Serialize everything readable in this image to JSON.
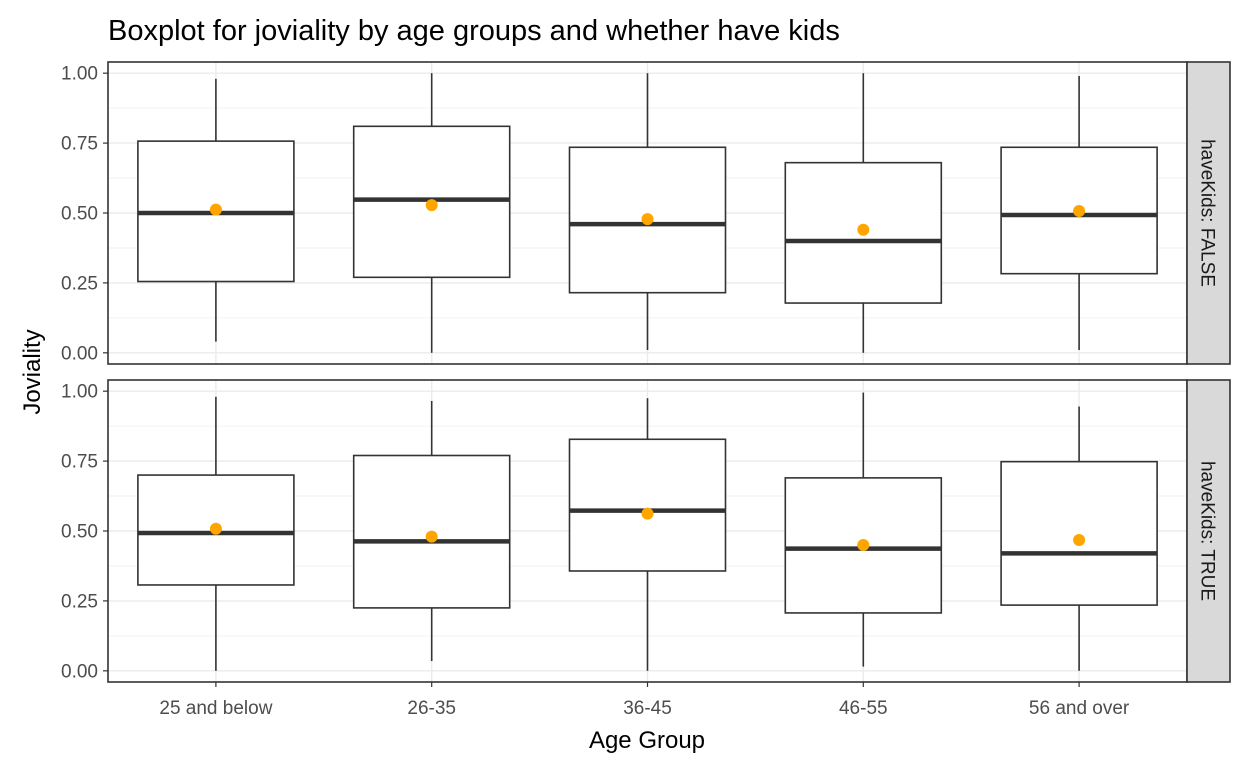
{
  "chart_data": {
    "type": "boxplot",
    "title": "Boxplot for joviality by age groups and whether have kids",
    "xlabel": "Age Group",
    "ylabel": "Joviality",
    "categories": [
      "25 and below",
      "26-35",
      "36-45",
      "46-55",
      "56 and over"
    ],
    "ylim": [
      -0.04,
      1.04
    ],
    "yticks": [
      0,
      0.25,
      0.5,
      0.75,
      1
    ],
    "ytick_labels": [
      "0.00",
      "0.25",
      "0.50",
      "0.75",
      "1.00"
    ],
    "grid": true,
    "mean_color": "#FFA500",
    "strip_fill": "#D9D9D9",
    "panels": [
      {
        "label": "haveKids: FALSE",
        "boxes": [
          {
            "min": 0.04,
            "q1": 0.255,
            "median": 0.5,
            "q3": 0.757,
            "max": 0.98,
            "mean": 0.512
          },
          {
            "min": 0.0,
            "q1": 0.27,
            "median": 0.548,
            "q3": 0.81,
            "max": 1.0,
            "mean": 0.528
          },
          {
            "min": 0.01,
            "q1": 0.215,
            "median": 0.46,
            "q3": 0.735,
            "max": 1.0,
            "mean": 0.478
          },
          {
            "min": 0.0,
            "q1": 0.178,
            "median": 0.4,
            "q3": 0.68,
            "max": 1.0,
            "mean": 0.44
          },
          {
            "min": 0.01,
            "q1": 0.283,
            "median": 0.493,
            "q3": 0.735,
            "max": 0.99,
            "mean": 0.507
          }
        ]
      },
      {
        "label": "haveKids: TRUE",
        "boxes": [
          {
            "min": 0.0,
            "q1": 0.307,
            "median": 0.493,
            "q3": 0.7,
            "max": 0.98,
            "mean": 0.508
          },
          {
            "min": 0.035,
            "q1": 0.225,
            "median": 0.463,
            "q3": 0.77,
            "max": 0.965,
            "mean": 0.48
          },
          {
            "min": 0.0,
            "q1": 0.357,
            "median": 0.573,
            "q3": 0.828,
            "max": 0.975,
            "mean": 0.562
          },
          {
            "min": 0.015,
            "q1": 0.207,
            "median": 0.437,
            "q3": 0.69,
            "max": 0.995,
            "mean": 0.45
          },
          {
            "min": 0.0,
            "q1": 0.235,
            "median": 0.42,
            "q3": 0.748,
            "max": 0.945,
            "mean": 0.468
          }
        ]
      }
    ]
  }
}
